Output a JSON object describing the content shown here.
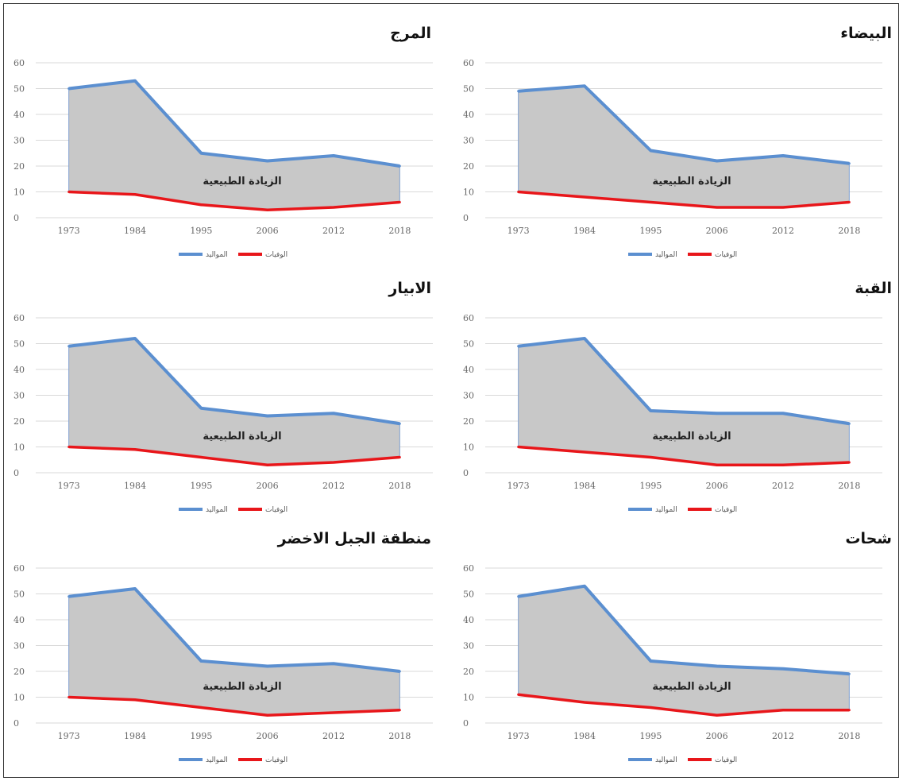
{
  "legend": {
    "births": "المواليد",
    "deaths": "الوفيات"
  },
  "area_label": "الزيادة الطبيعية",
  "colors": {
    "births": "#5b8fd0",
    "deaths": "#e8161a",
    "fill": "#c8c8c8",
    "grid": "#d9d9d9"
  },
  "chart_data": [
    {
      "type": "area",
      "title": "المرج",
      "categories": [
        "1973",
        "1984",
        "1995",
        "2006",
        "2012",
        "2018"
      ],
      "ylim": [
        0,
        60
      ],
      "yticks": [
        0,
        10,
        20,
        30,
        40,
        50,
        60
      ],
      "grid": true,
      "legend_position": "bottom",
      "series": [
        {
          "name": "المواليد",
          "values": [
            50,
            53,
            25,
            22,
            24,
            20
          ]
        },
        {
          "name": "الوفيات",
          "values": [
            10,
            9,
            5,
            3,
            4,
            6
          ]
        }
      ],
      "annotation": "الزيادة الطبيعية"
    },
    {
      "type": "area",
      "title": "البيضاء",
      "categories": [
        "1973",
        "1984",
        "1995",
        "2006",
        "2012",
        "2018"
      ],
      "ylim": [
        0,
        60
      ],
      "yticks": [
        0,
        10,
        20,
        30,
        40,
        50,
        60
      ],
      "grid": true,
      "legend_position": "bottom",
      "series": [
        {
          "name": "المواليد",
          "values": [
            49,
            51,
            26,
            22,
            24,
            21
          ]
        },
        {
          "name": "الوفيات",
          "values": [
            10,
            8,
            6,
            4,
            4,
            6
          ]
        }
      ],
      "annotation": "الزيادة الطبيعية"
    },
    {
      "type": "area",
      "title": "الابيار",
      "categories": [
        "1973",
        "1984",
        "1995",
        "2006",
        "2012",
        "2018"
      ],
      "ylim": [
        0,
        60
      ],
      "yticks": [
        0,
        10,
        20,
        30,
        40,
        50,
        60
      ],
      "grid": true,
      "legend_position": "bottom",
      "series": [
        {
          "name": "المواليد",
          "values": [
            49,
            52,
            25,
            22,
            23,
            19
          ]
        },
        {
          "name": "الوفيات",
          "values": [
            10,
            9,
            6,
            3,
            4,
            6
          ]
        }
      ],
      "annotation": "الزيادة الطبيعية"
    },
    {
      "type": "area",
      "title": "القبة",
      "categories": [
        "1973",
        "1984",
        "1995",
        "2006",
        "2012",
        "2018"
      ],
      "ylim": [
        0,
        60
      ],
      "yticks": [
        0,
        10,
        20,
        30,
        40,
        50,
        60
      ],
      "grid": true,
      "legend_position": "bottom",
      "series": [
        {
          "name": "المواليد",
          "values": [
            49,
            52,
            24,
            23,
            23,
            19
          ]
        },
        {
          "name": "الوفيات",
          "values": [
            10,
            8,
            6,
            3,
            3,
            4
          ]
        }
      ],
      "annotation": "الزيادة الطبيعية"
    },
    {
      "type": "area",
      "title": "منطقة الجبل الاخضر",
      "categories": [
        "1973",
        "1984",
        "1995",
        "2006",
        "2012",
        "2018"
      ],
      "ylim": [
        0,
        60
      ],
      "yticks": [
        0,
        10,
        20,
        30,
        40,
        50,
        60
      ],
      "grid": true,
      "legend_position": "bottom",
      "series": [
        {
          "name": "المواليد",
          "values": [
            49,
            52,
            24,
            22,
            23,
            20
          ]
        },
        {
          "name": "الوفيات",
          "values": [
            10,
            9,
            6,
            3,
            4,
            5
          ]
        }
      ],
      "annotation": "الزيادة الطبيعية"
    },
    {
      "type": "area",
      "title": "شحات",
      "categories": [
        "1973",
        "1984",
        "1995",
        "2006",
        "2012",
        "2018"
      ],
      "ylim": [
        0,
        60
      ],
      "yticks": [
        0,
        10,
        20,
        30,
        40,
        50,
        60
      ],
      "grid": true,
      "legend_position": "bottom",
      "series": [
        {
          "name": "المواليد",
          "values": [
            49,
            53,
            24,
            22,
            21,
            19
          ]
        },
        {
          "name": "الوفيات",
          "values": [
            11,
            8,
            6,
            3,
            5,
            5
          ]
        }
      ],
      "annotation": "الزيادة الطبيعية"
    }
  ]
}
